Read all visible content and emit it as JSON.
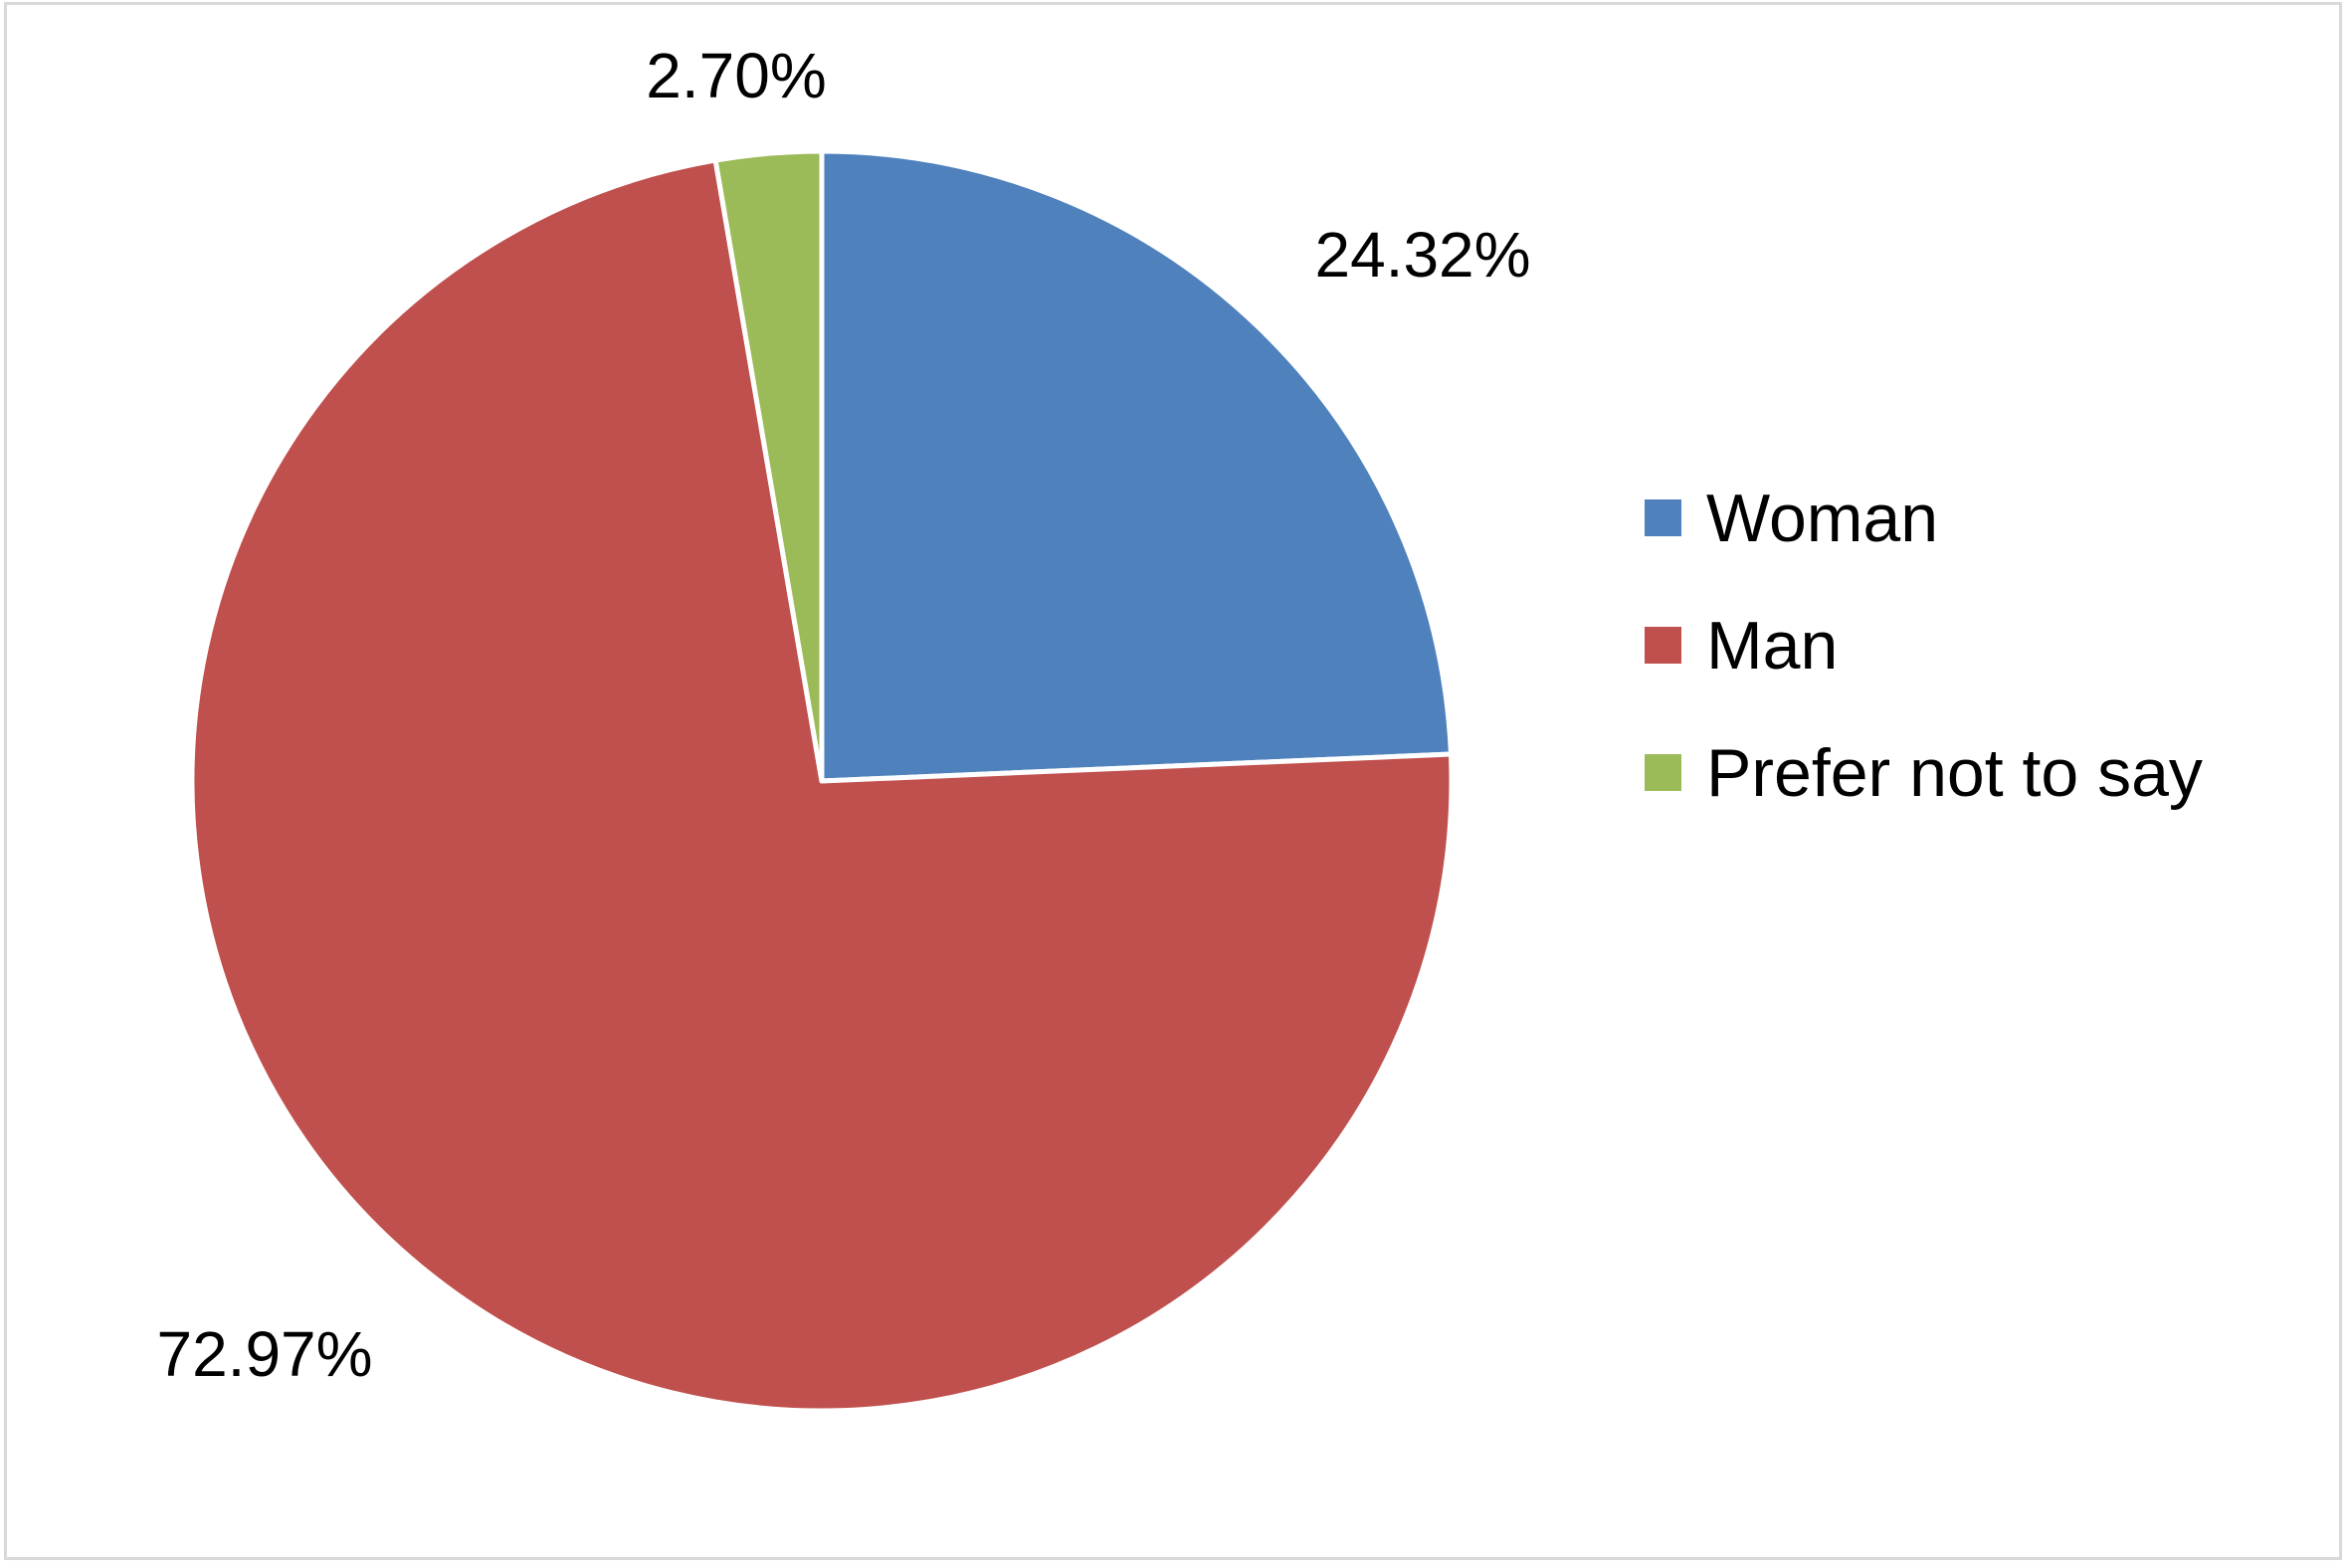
{
  "chart_data": {
    "type": "pie",
    "categories": [
      "Woman",
      "Man",
      "Prefer not to say"
    ],
    "values": [
      24.32,
      72.97,
      2.7
    ],
    "data_labels": [
      "24.32%",
      "72.97%",
      "2.70%"
    ],
    "colors": [
      "#4f81bd",
      "#c0504d",
      "#9bbb59"
    ],
    "start_angle_deg": 0,
    "direction": "clockwise",
    "title": "",
    "legend": {
      "placement": "right",
      "entries": [
        "Woman",
        "Man",
        "Prefer not to say"
      ]
    }
  }
}
